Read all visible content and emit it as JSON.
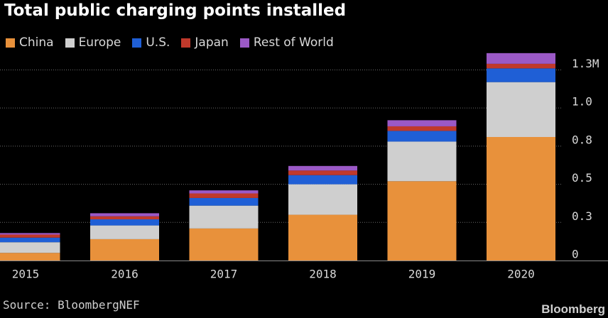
{
  "chart_data": {
    "type": "bar",
    "stacked": true,
    "title": "Total public charging points installed",
    "categories": [
      "2015",
      "2016",
      "2017",
      "2018",
      "2019",
      "2020"
    ],
    "series": [
      {
        "name": "China",
        "color": "#e8913b",
        "values": [
          0.05,
          0.14,
          0.21,
          0.3,
          0.52,
          0.81
        ]
      },
      {
        "name": "Europe",
        "color": "#cfcfcf",
        "values": [
          0.07,
          0.09,
          0.15,
          0.2,
          0.26,
          0.36
        ]
      },
      {
        "name": "U.S.",
        "color": "#1f5fd6",
        "values": [
          0.03,
          0.04,
          0.05,
          0.06,
          0.07,
          0.09
        ]
      },
      {
        "name": "Japan",
        "color": "#c0392b",
        "values": [
          0.02,
          0.02,
          0.03,
          0.03,
          0.03,
          0.03
        ]
      },
      {
        "name": "Rest of World",
        "color": "#9b59c6",
        "values": [
          0.01,
          0.02,
          0.02,
          0.03,
          0.04,
          0.07
        ]
      }
    ],
    "y_tick_labels": [
      "0",
      "0.3",
      "0.5",
      "0.8",
      "1.0",
      "1.3M"
    ],
    "y_tick_values": [
      0,
      0.25,
      0.5,
      0.75,
      1.0,
      1.25
    ],
    "ylim": [
      0,
      1.35
    ],
    "grid": true,
    "legend_position": "top-left",
    "y_axis_side": "right"
  },
  "footer": {
    "source": "Source: BloombergNEF",
    "brand": "Bloomberg"
  }
}
